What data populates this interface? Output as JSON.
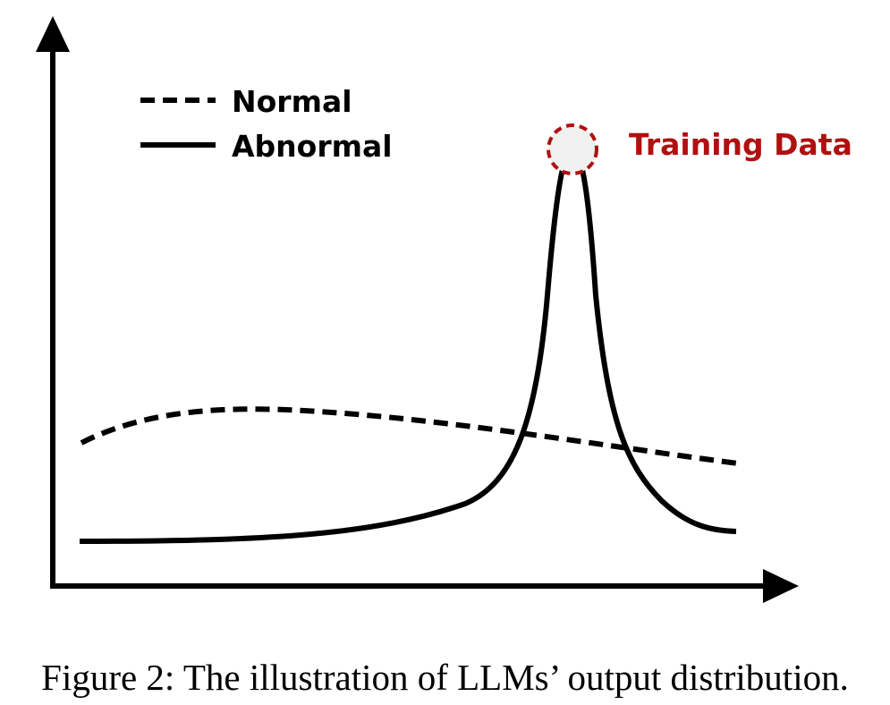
{
  "legend": {
    "normal_label": "Normal",
    "abnormal_label": "Abnormal"
  },
  "annotation": {
    "label": "Training Data",
    "color": "#b01010"
  },
  "caption": "Figure 2: The illustration of LLMs’ output distribution.",
  "colors": {
    "curve": "#000000",
    "axis": "#000000",
    "marker_fill": "#f0f0f0"
  }
}
